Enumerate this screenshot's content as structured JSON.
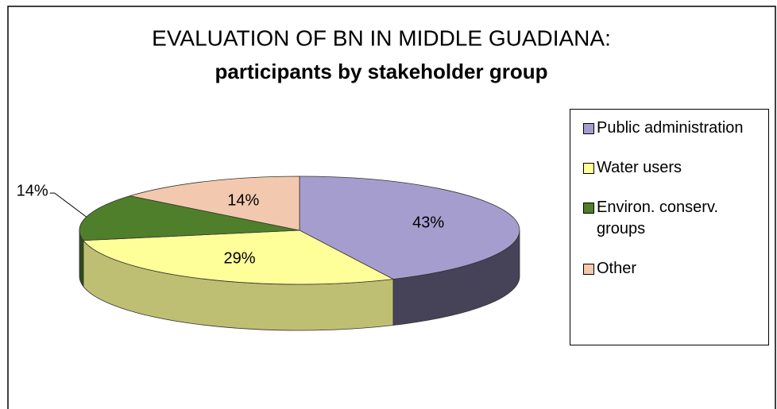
{
  "chart_data": {
    "type": "pie",
    "title": "EVALUATION OF BN IN MIDDLE GUADIANA:",
    "subtitle": "participants by stakeholder group",
    "categories": [
      "Public administration",
      "Water users",
      "Environ. conserv. groups",
      "Other"
    ],
    "values": [
      43,
      29,
      14,
      14
    ],
    "value_labels": [
      "43%",
      "29%",
      "14%",
      "14%"
    ],
    "colors": [
      "#a69dcf",
      "#ffff99",
      "#4f7f2a",
      "#f2c9ae"
    ],
    "legend": "right"
  }
}
